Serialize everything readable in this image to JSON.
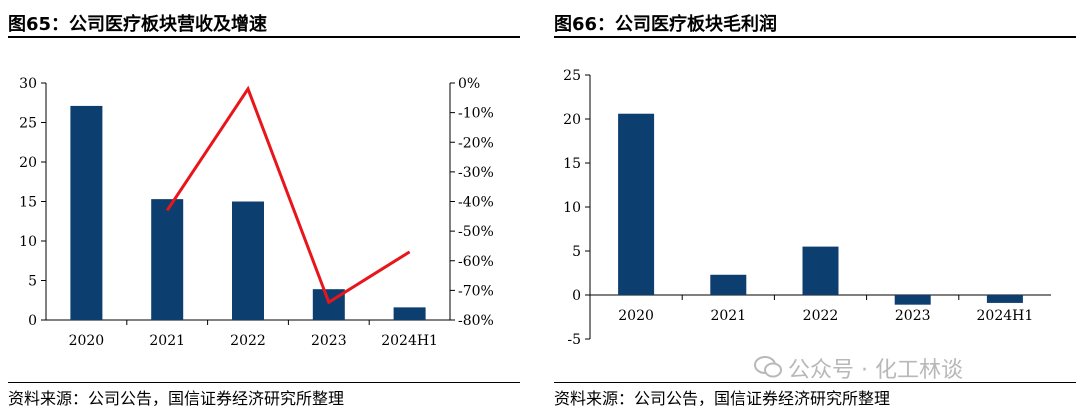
{
  "figures": [
    {
      "title": "图65：公司医疗板块营收及增速",
      "source": "资料来源：公司公告，国信证券经济研究所整理"
    },
    {
      "title": "图66：公司医疗板块毛利润",
      "source": "资料来源：公司公告，国信证券经济研究所整理"
    }
  ],
  "watermark": "公众号 · 化工林谈",
  "chart_data": [
    {
      "type": "bar",
      "categories": [
        "2020",
        "2021",
        "2022",
        "2023",
        "2024H1"
      ],
      "series": [
        {
          "values": [
            27.1,
            15.3,
            15.0,
            3.9,
            1.6
          ],
          "color": "#0c3f70",
          "axis": "left"
        },
        {
          "type": "line",
          "values": [
            null,
            -43,
            -2,
            -74,
            -57
          ],
          "color": "#e8161b",
          "axis": "right"
        }
      ],
      "ylim": [
        0,
        30
      ],
      "yticks": [
        "0",
        "5",
        "10",
        "15",
        "20",
        "25",
        "30"
      ],
      "y2lim": [
        -80,
        0
      ],
      "y2ticks": [
        "-80%",
        "-70%",
        "-60%",
        "-50%",
        "-40%",
        "-30%",
        "-20%",
        "-10%",
        "0%"
      ],
      "grid": false
    },
    {
      "type": "bar",
      "categories": [
        "2020",
        "2021",
        "2022",
        "2023",
        "2024H1"
      ],
      "series": [
        {
          "values": [
            20.6,
            2.3,
            5.5,
            -1.1,
            -0.9
          ],
          "color": "#0c3f70"
        }
      ],
      "ylim": [
        -5,
        25
      ],
      "yticks": [
        "-5",
        "0",
        "5",
        "10",
        "15",
        "20",
        "25"
      ],
      "grid": false
    }
  ]
}
